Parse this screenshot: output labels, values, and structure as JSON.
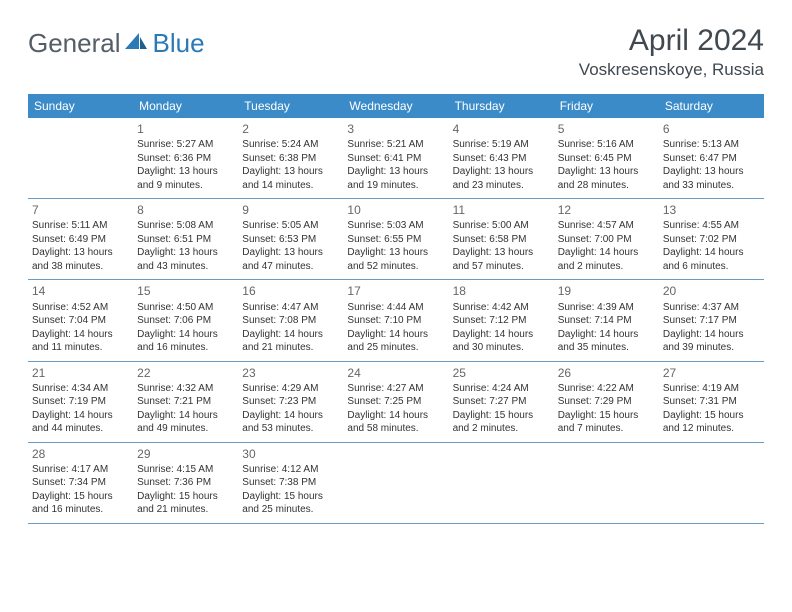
{
  "brand": {
    "name1": "General",
    "name2": "Blue"
  },
  "header": {
    "month": "April 2024",
    "location": "Voskresenskoye, Russia"
  },
  "colors": {
    "header_bg": "#3b8bc9",
    "header_text": "#ffffff",
    "border": "#6a9bc4",
    "text": "#333333",
    "brand_gray": "#555d66",
    "brand_blue": "#2a7ab8"
  },
  "weekdays": [
    "Sunday",
    "Monday",
    "Tuesday",
    "Wednesday",
    "Thursday",
    "Friday",
    "Saturday"
  ],
  "weeks": [
    [
      null,
      {
        "d": "1",
        "sr": "Sunrise: 5:27 AM",
        "ss": "Sunset: 6:36 PM",
        "dl1": "Daylight: 13 hours",
        "dl2": "and 9 minutes."
      },
      {
        "d": "2",
        "sr": "Sunrise: 5:24 AM",
        "ss": "Sunset: 6:38 PM",
        "dl1": "Daylight: 13 hours",
        "dl2": "and 14 minutes."
      },
      {
        "d": "3",
        "sr": "Sunrise: 5:21 AM",
        "ss": "Sunset: 6:41 PM",
        "dl1": "Daylight: 13 hours",
        "dl2": "and 19 minutes."
      },
      {
        "d": "4",
        "sr": "Sunrise: 5:19 AM",
        "ss": "Sunset: 6:43 PM",
        "dl1": "Daylight: 13 hours",
        "dl2": "and 23 minutes."
      },
      {
        "d": "5",
        "sr": "Sunrise: 5:16 AM",
        "ss": "Sunset: 6:45 PM",
        "dl1": "Daylight: 13 hours",
        "dl2": "and 28 minutes."
      },
      {
        "d": "6",
        "sr": "Sunrise: 5:13 AM",
        "ss": "Sunset: 6:47 PM",
        "dl1": "Daylight: 13 hours",
        "dl2": "and 33 minutes."
      }
    ],
    [
      {
        "d": "7",
        "sr": "Sunrise: 5:11 AM",
        "ss": "Sunset: 6:49 PM",
        "dl1": "Daylight: 13 hours",
        "dl2": "and 38 minutes."
      },
      {
        "d": "8",
        "sr": "Sunrise: 5:08 AM",
        "ss": "Sunset: 6:51 PM",
        "dl1": "Daylight: 13 hours",
        "dl2": "and 43 minutes."
      },
      {
        "d": "9",
        "sr": "Sunrise: 5:05 AM",
        "ss": "Sunset: 6:53 PM",
        "dl1": "Daylight: 13 hours",
        "dl2": "and 47 minutes."
      },
      {
        "d": "10",
        "sr": "Sunrise: 5:03 AM",
        "ss": "Sunset: 6:55 PM",
        "dl1": "Daylight: 13 hours",
        "dl2": "and 52 minutes."
      },
      {
        "d": "11",
        "sr": "Sunrise: 5:00 AM",
        "ss": "Sunset: 6:58 PM",
        "dl1": "Daylight: 13 hours",
        "dl2": "and 57 minutes."
      },
      {
        "d": "12",
        "sr": "Sunrise: 4:57 AM",
        "ss": "Sunset: 7:00 PM",
        "dl1": "Daylight: 14 hours",
        "dl2": "and 2 minutes."
      },
      {
        "d": "13",
        "sr": "Sunrise: 4:55 AM",
        "ss": "Sunset: 7:02 PM",
        "dl1": "Daylight: 14 hours",
        "dl2": "and 6 minutes."
      }
    ],
    [
      {
        "d": "14",
        "sr": "Sunrise: 4:52 AM",
        "ss": "Sunset: 7:04 PM",
        "dl1": "Daylight: 14 hours",
        "dl2": "and 11 minutes."
      },
      {
        "d": "15",
        "sr": "Sunrise: 4:50 AM",
        "ss": "Sunset: 7:06 PM",
        "dl1": "Daylight: 14 hours",
        "dl2": "and 16 minutes."
      },
      {
        "d": "16",
        "sr": "Sunrise: 4:47 AM",
        "ss": "Sunset: 7:08 PM",
        "dl1": "Daylight: 14 hours",
        "dl2": "and 21 minutes."
      },
      {
        "d": "17",
        "sr": "Sunrise: 4:44 AM",
        "ss": "Sunset: 7:10 PM",
        "dl1": "Daylight: 14 hours",
        "dl2": "and 25 minutes."
      },
      {
        "d": "18",
        "sr": "Sunrise: 4:42 AM",
        "ss": "Sunset: 7:12 PM",
        "dl1": "Daylight: 14 hours",
        "dl2": "and 30 minutes."
      },
      {
        "d": "19",
        "sr": "Sunrise: 4:39 AM",
        "ss": "Sunset: 7:14 PM",
        "dl1": "Daylight: 14 hours",
        "dl2": "and 35 minutes."
      },
      {
        "d": "20",
        "sr": "Sunrise: 4:37 AM",
        "ss": "Sunset: 7:17 PM",
        "dl1": "Daylight: 14 hours",
        "dl2": "and 39 minutes."
      }
    ],
    [
      {
        "d": "21",
        "sr": "Sunrise: 4:34 AM",
        "ss": "Sunset: 7:19 PM",
        "dl1": "Daylight: 14 hours",
        "dl2": "and 44 minutes."
      },
      {
        "d": "22",
        "sr": "Sunrise: 4:32 AM",
        "ss": "Sunset: 7:21 PM",
        "dl1": "Daylight: 14 hours",
        "dl2": "and 49 minutes."
      },
      {
        "d": "23",
        "sr": "Sunrise: 4:29 AM",
        "ss": "Sunset: 7:23 PM",
        "dl1": "Daylight: 14 hours",
        "dl2": "and 53 minutes."
      },
      {
        "d": "24",
        "sr": "Sunrise: 4:27 AM",
        "ss": "Sunset: 7:25 PM",
        "dl1": "Daylight: 14 hours",
        "dl2": "and 58 minutes."
      },
      {
        "d": "25",
        "sr": "Sunrise: 4:24 AM",
        "ss": "Sunset: 7:27 PM",
        "dl1": "Daylight: 15 hours",
        "dl2": "and 2 minutes."
      },
      {
        "d": "26",
        "sr": "Sunrise: 4:22 AM",
        "ss": "Sunset: 7:29 PM",
        "dl1": "Daylight: 15 hours",
        "dl2": "and 7 minutes."
      },
      {
        "d": "27",
        "sr": "Sunrise: 4:19 AM",
        "ss": "Sunset: 7:31 PM",
        "dl1": "Daylight: 15 hours",
        "dl2": "and 12 minutes."
      }
    ],
    [
      {
        "d": "28",
        "sr": "Sunrise: 4:17 AM",
        "ss": "Sunset: 7:34 PM",
        "dl1": "Daylight: 15 hours",
        "dl2": "and 16 minutes."
      },
      {
        "d": "29",
        "sr": "Sunrise: 4:15 AM",
        "ss": "Sunset: 7:36 PM",
        "dl1": "Daylight: 15 hours",
        "dl2": "and 21 minutes."
      },
      {
        "d": "30",
        "sr": "Sunrise: 4:12 AM",
        "ss": "Sunset: 7:38 PM",
        "dl1": "Daylight: 15 hours",
        "dl2": "and 25 minutes."
      },
      null,
      null,
      null,
      null
    ]
  ]
}
